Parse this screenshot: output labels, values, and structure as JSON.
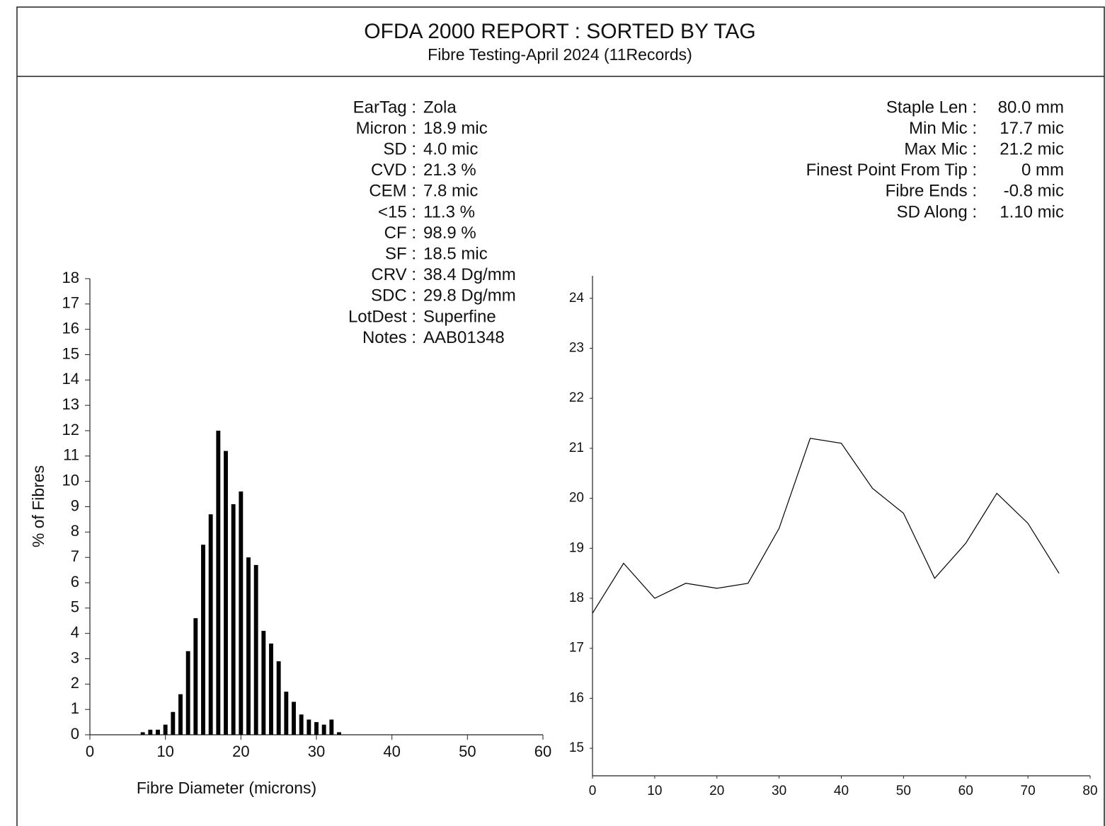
{
  "header": {
    "title": "OFDA 2000 REPORT : SORTED BY TAG",
    "subtitle": "Fibre Testing-April 2024 (11Records)"
  },
  "left_stats": [
    {
      "label": "EarTag :",
      "value": "Zola"
    },
    {
      "label": "Micron :",
      "value": "18.9 mic"
    },
    {
      "label": "SD :",
      "value": "4.0 mic"
    },
    {
      "label": "CVD :",
      "value": "21.3 %"
    },
    {
      "label": "CEM :",
      "value": "7.8 mic"
    },
    {
      "label": "<15 :",
      "value": "11.3 %"
    },
    {
      "label": "CF :",
      "value": "98.9 %"
    },
    {
      "label": "SF :",
      "value": "18.5 mic"
    },
    {
      "label": "CRV :",
      "value": "38.4 Dg/mm"
    },
    {
      "label": "SDC :",
      "value": "29.8 Dg/mm"
    },
    {
      "label": "LotDest :",
      "value": "Superfine"
    },
    {
      "label": "Notes :",
      "value": "AAB01348"
    }
  ],
  "right_stats": [
    {
      "label": "Staple Len :",
      "value": "80.0 mm"
    },
    {
      "label": "Min Mic :",
      "value": "17.7 mic"
    },
    {
      "label": "Max Mic :",
      "value": "21.2 mic"
    },
    {
      "label": "Finest Point From Tip :",
      "value": "0 mm"
    },
    {
      "label": "Fibre Ends :",
      "value": "-0.8 mic"
    },
    {
      "label": "SD Along :",
      "value": "1.10 mic"
    }
  ],
  "chart_data": [
    {
      "type": "bar",
      "x_label": "Fibre Diameter (microns)",
      "y_label": "% of Fibres",
      "color": "#000000",
      "x": [
        7,
        8,
        9,
        10,
        11,
        12,
        13,
        14,
        15,
        16,
        17,
        18,
        19,
        20,
        21,
        22,
        23,
        24,
        25,
        26,
        27,
        28,
        29,
        30,
        31,
        32,
        33
      ],
      "values": [
        0.1,
        0.2,
        0.2,
        0.4,
        0.9,
        1.6,
        3.3,
        4.6,
        7.5,
        8.7,
        12.0,
        11.2,
        9.1,
        9.6,
        7.0,
        6.7,
        4.1,
        3.6,
        2.9,
        1.7,
        1.3,
        0.8,
        0.6,
        0.5,
        0.4,
        0.6,
        0.1
      ],
      "xlim": [
        0,
        60
      ],
      "xticks": [
        0,
        10,
        20,
        30,
        40,
        50,
        60
      ],
      "ylim": [
        0,
        18
      ],
      "yticks": [
        0,
        1,
        2,
        3,
        4,
        5,
        6,
        7,
        8,
        9,
        10,
        11,
        12,
        13,
        14,
        15,
        16,
        17,
        18
      ]
    },
    {
      "type": "line",
      "color": "#000000",
      "x": [
        0,
        5,
        10,
        15,
        20,
        25,
        30,
        35,
        40,
        45,
        50,
        55,
        60,
        65,
        70,
        75
      ],
      "values": [
        17.7,
        18.7,
        18.0,
        18.3,
        18.2,
        18.3,
        19.4,
        21.2,
        21.1,
        20.2,
        19.7,
        18.4,
        19.1,
        20.1,
        19.5,
        18.5
      ],
      "xlim": [
        0,
        80
      ],
      "xticks": [
        0,
        10,
        20,
        30,
        40,
        50,
        60,
        70,
        80
      ],
      "ylim": [
        14.45,
        24.45
      ],
      "yticks": [
        15,
        16,
        17,
        18,
        19,
        20,
        21,
        22,
        23,
        24
      ]
    }
  ]
}
